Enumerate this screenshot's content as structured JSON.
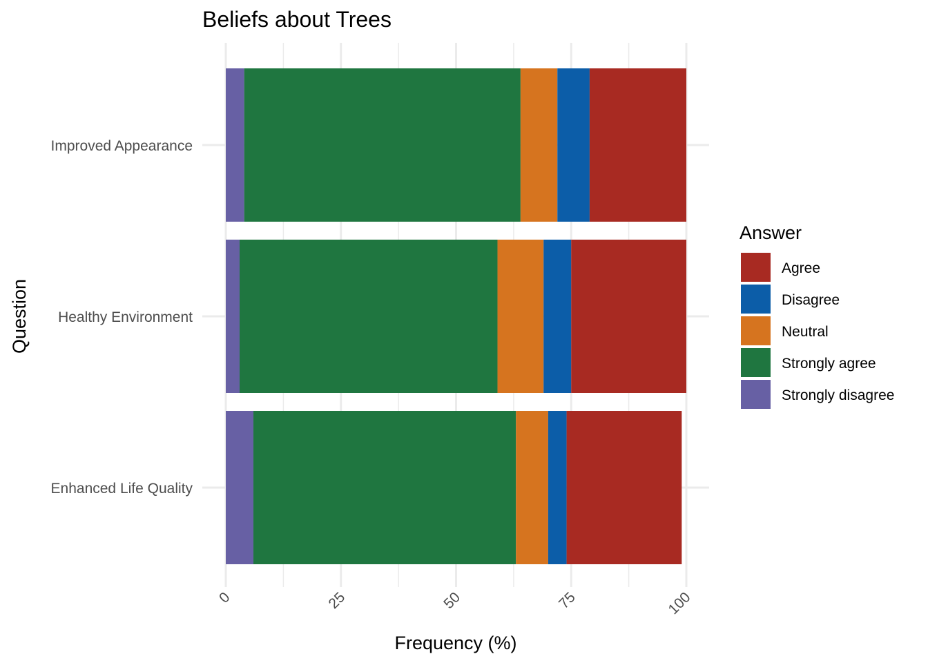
{
  "chart_data": {
    "type": "bar",
    "orientation": "horizontal",
    "stacked": true,
    "title": "Beliefs about Trees",
    "xlabel": "Frequency (%)",
    "ylabel": "Question",
    "xlim": [
      0,
      100
    ],
    "x_ticks": [
      0,
      25,
      50,
      75,
      100
    ],
    "grid": true,
    "legend_position": "right",
    "legend_title": "Answer",
    "categories": [
      "Improved Appearance",
      "Healthy Environment",
      "Enhanced Life Quality"
    ],
    "stack_order": [
      "Strongly disagree",
      "Strongly agree",
      "Neutral",
      "Disagree",
      "Agree"
    ],
    "series": [
      {
        "name": "Agree",
        "color": "#A82A22",
        "values": [
          21,
          25,
          25
        ]
      },
      {
        "name": "Disagree",
        "color": "#0C5DA8",
        "values": [
          7,
          6,
          4
        ]
      },
      {
        "name": "Neutral",
        "color": "#D6741F",
        "values": [
          8,
          10,
          7
        ]
      },
      {
        "name": "Strongly agree",
        "color": "#1F7640",
        "values": [
          60,
          56,
          57
        ]
      },
      {
        "name": "Strongly disagree",
        "color": "#6760A4",
        "values": [
          4,
          3,
          6
        ]
      }
    ]
  }
}
